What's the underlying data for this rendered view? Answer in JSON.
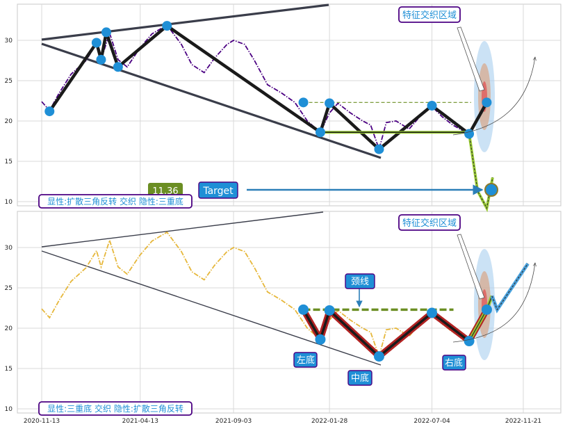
{
  "chart_data": [
    {
      "type": "line",
      "panel": "top",
      "title": "",
      "xlabel": "",
      "ylabel": "",
      "ylim": [
        9.5,
        34.5
      ],
      "yticks": [
        10,
        15,
        20,
        25,
        30
      ],
      "grid": true,
      "series": [
        {
          "color": "#4b0082",
          "style": "dash-dot",
          "points": [
            [
              "2020-11-13",
              22.4
            ],
            [
              "2020-11-25",
              21.3
            ],
            [
              "2020-12-10",
              23.5
            ],
            [
              "2020-12-28",
              25.8
            ],
            [
              "2021-01-20",
              27.5
            ],
            [
              "2021-02-05",
              29.6
            ],
            [
              "2021-02-12",
              27.6
            ],
            [
              "2021-02-25",
              30.9
            ],
            [
              "2021-03-10",
              27.6
            ],
            [
              "2021-03-24",
              26.7
            ],
            [
              "2021-04-12",
              29.0
            ],
            [
              "2021-05-01",
              30.8
            ],
            [
              "2021-05-24",
              31.9
            ],
            [
              "2021-06-15",
              29.5
            ],
            [
              "2021-07-01",
              27.0
            ],
            [
              "2021-07-20",
              26.0
            ],
            [
              "2021-08-05",
              27.8
            ],
            [
              "2021-08-24",
              29.5
            ],
            [
              "2021-09-03",
              30.0
            ],
            [
              "2021-09-20",
              29.5
            ],
            [
              "2021-10-05",
              27.5
            ],
            [
              "2021-10-25",
              24.5
            ],
            [
              "2021-11-15",
              23.5
            ],
            [
              "2021-12-06",
              22.3
            ],
            [
              "2021-12-25",
              20.0
            ],
            [
              "2022-01-14",
              18.6
            ],
            [
              "2022-01-28",
              21.0
            ],
            [
              "2022-02-10",
              22.2
            ],
            [
              "2022-03-01",
              21.0
            ],
            [
              "2022-03-20",
              20.0
            ],
            [
              "2022-04-01",
              19.5
            ],
            [
              "2022-04-14",
              16.5
            ],
            [
              "2022-04-25",
              19.8
            ],
            [
              "2022-05-10",
              20.0
            ],
            [
              "2022-05-30",
              19.0
            ],
            [
              "2022-06-15",
              20.5
            ],
            [
              "2022-07-04",
              21.8
            ],
            [
              "2022-07-20",
              20.5
            ],
            [
              "2022-08-05",
              19.5
            ],
            [
              "2022-08-20",
              18.8
            ],
            [
              "2022-08-30",
              18.4
            ]
          ]
        }
      ],
      "pattern_line": {
        "color": "#1a1a1a",
        "points": [
          [
            "2020-11-25",
            21.2
          ],
          [
            "2021-02-05",
            29.7
          ],
          [
            "2021-02-12",
            27.6
          ],
          [
            "2021-02-20",
            31.0
          ],
          [
            "2021-03-10",
            26.7
          ],
          [
            "2021-05-24",
            31.8
          ],
          [
            "2022-01-14",
            18.6
          ],
          [
            "2022-01-28",
            22.2
          ],
          [
            "2022-04-14",
            16.5
          ],
          [
            "2022-07-04",
            21.9
          ],
          [
            "2022-08-30",
            18.4
          ],
          [
            "2022-09-26",
            22.3
          ]
        ]
      },
      "markers": [
        {
          "date": "2020-11-25",
          "y": 21.2
        },
        {
          "date": "2021-02-05",
          "y": 29.7
        },
        {
          "date": "2021-02-12",
          "y": 27.6
        },
        {
          "date": "2021-02-20",
          "y": 31.0
        },
        {
          "date": "2021-03-10",
          "y": 26.7
        },
        {
          "date": "2021-05-24",
          "y": 31.8
        },
        {
          "date": "2021-12-19",
          "y": 22.3
        },
        {
          "date": "2022-01-14",
          "y": 18.6
        },
        {
          "date": "2022-01-28",
          "y": 22.2
        },
        {
          "date": "2022-04-14",
          "y": 16.5
        },
        {
          "date": "2022-07-04",
          "y": 21.9
        },
        {
          "date": "2022-08-30",
          "y": 18.4
        },
        {
          "date": "2022-09-26",
          "y": 22.3
        }
      ],
      "annotations": {
        "neckline_dashed": {
          "from": [
            "2021-12-19",
            22.3
          ],
          "to": [
            "2022-09-02",
            22.3
          ],
          "color": "#6b8e23"
        },
        "support_solid": {
          "from": [
            "2022-01-14",
            18.6
          ],
          "to": [
            "2022-08-30",
            18.6
          ],
          "color": "#9acd32"
        },
        "breakdown_path": [
          [
            "2022-08-30",
            18.4
          ],
          [
            "2022-09-12",
            11.3
          ],
          [
            "2022-09-26",
            9.2
          ],
          [
            "2022-10-05",
            13.0
          ]
        ],
        "target_marker": {
          "date": "2022-10-07",
          "y": 11.36
        },
        "target_arrow": {
          "from": "2021-10-08",
          "to": "2022-09-28",
          "y": 11.36
        }
      },
      "badges": {
        "left_value": "11.36",
        "target_label": "Target",
        "zone_label": "特征交织区域",
        "bottom_label": "显性:扩散三角反转 交织 隐性:三重底"
      }
    },
    {
      "type": "line",
      "panel": "bottom",
      "title": "",
      "xlabel": "",
      "ylabel": "",
      "ylim": [
        9.5,
        34.5
      ],
      "yticks": [
        10,
        15,
        20,
        25,
        30
      ],
      "x_tick_labels": [
        "2020-11-13",
        "2021-04-13",
        "2021-09-03",
        "2022-01-28",
        "2022-07-04",
        "2022-11-21"
      ],
      "grid": true,
      "series": [
        {
          "color": "#e6b73a",
          "style": "dash-dot",
          "points": [
            [
              "2020-11-13",
              22.4
            ],
            [
              "2020-11-25",
              21.3
            ],
            [
              "2020-12-10",
              23.5
            ],
            [
              "2020-12-28",
              25.8
            ],
            [
              "2021-01-20",
              27.5
            ],
            [
              "2021-02-05",
              29.6
            ],
            [
              "2021-02-12",
              27.6
            ],
            [
              "2021-02-25",
              30.9
            ],
            [
              "2021-03-10",
              27.6
            ],
            [
              "2021-03-24",
              26.7
            ],
            [
              "2021-04-12",
              29.0
            ],
            [
              "2021-05-01",
              30.8
            ],
            [
              "2021-05-24",
              31.9
            ],
            [
              "2021-06-15",
              29.5
            ],
            [
              "2021-07-01",
              27.0
            ],
            [
              "2021-07-20",
              26.0
            ],
            [
              "2021-08-05",
              27.8
            ],
            [
              "2021-08-24",
              29.5
            ],
            [
              "2021-09-03",
              30.0
            ],
            [
              "2021-09-20",
              29.5
            ],
            [
              "2021-10-05",
              27.5
            ],
            [
              "2021-10-25",
              24.5
            ],
            [
              "2021-11-15",
              23.5
            ],
            [
              "2021-12-06",
              22.3
            ],
            [
              "2021-12-25",
              20.0
            ],
            [
              "2022-01-14",
              18.6
            ],
            [
              "2022-01-28",
              21.0
            ],
            [
              "2022-02-10",
              22.2
            ],
            [
              "2022-03-01",
              21.0
            ],
            [
              "2022-03-20",
              20.0
            ],
            [
              "2022-04-01",
              19.5
            ],
            [
              "2022-04-14",
              16.5
            ],
            [
              "2022-04-25",
              19.8
            ],
            [
              "2022-05-10",
              20.0
            ],
            [
              "2022-05-30",
              19.0
            ],
            [
              "2022-06-15",
              20.5
            ],
            [
              "2022-07-04",
              21.8
            ],
            [
              "2022-07-20",
              20.5
            ],
            [
              "2022-08-05",
              19.5
            ],
            [
              "2022-08-20",
              18.8
            ],
            [
              "2022-08-30",
              18.4
            ]
          ]
        }
      ],
      "pattern_line": {
        "color": "#1a1a1a",
        "highlight": "#b22222",
        "points": [
          [
            "2021-12-19",
            22.3
          ],
          [
            "2022-01-14",
            18.6
          ],
          [
            "2022-01-28",
            22.2
          ],
          [
            "2022-04-14",
            16.5
          ],
          [
            "2022-07-04",
            21.9
          ],
          [
            "2022-08-30",
            18.4
          ],
          [
            "2022-09-26",
            22.3
          ]
        ]
      },
      "markers": [
        {
          "date": "2021-12-19",
          "y": 22.3
        },
        {
          "date": "2022-01-14",
          "y": 18.6
        },
        {
          "date": "2022-01-28",
          "y": 22.2
        },
        {
          "date": "2022-04-14",
          "y": 16.5
        },
        {
          "date": "2022-07-04",
          "y": 21.9
        },
        {
          "date": "2022-08-30",
          "y": 18.4
        },
        {
          "date": "2022-09-26",
          "y": 22.3
        }
      ],
      "annotations": {
        "neckline_dashed": {
          "from": [
            "2021-12-19",
            22.3
          ],
          "to": [
            "2022-08-06",
            22.3
          ],
          "color": "#6b8e23"
        },
        "breakout_path": [
          [
            "2022-08-30",
            18.4
          ],
          [
            "2022-09-26",
            22.3
          ],
          [
            "2022-10-04",
            24.0
          ],
          [
            "2022-10-12",
            22.3
          ],
          [
            "2022-11-28",
            28.0
          ]
        ],
        "labels": {
          "neckline": "颈线",
          "left": "左底",
          "middle": "中底",
          "right": "右底"
        }
      },
      "badges": {
        "zone_label": "特征交织区域",
        "bottom_label": "显性:三重底 交织 隐性:扩散三角反转"
      }
    }
  ],
  "colors": {
    "badge_blue": "#1f8fd6",
    "badge_border": "#4b0082",
    "value_badge_green": "#6b8e23",
    "zone_text": "#1f8fd6"
  }
}
